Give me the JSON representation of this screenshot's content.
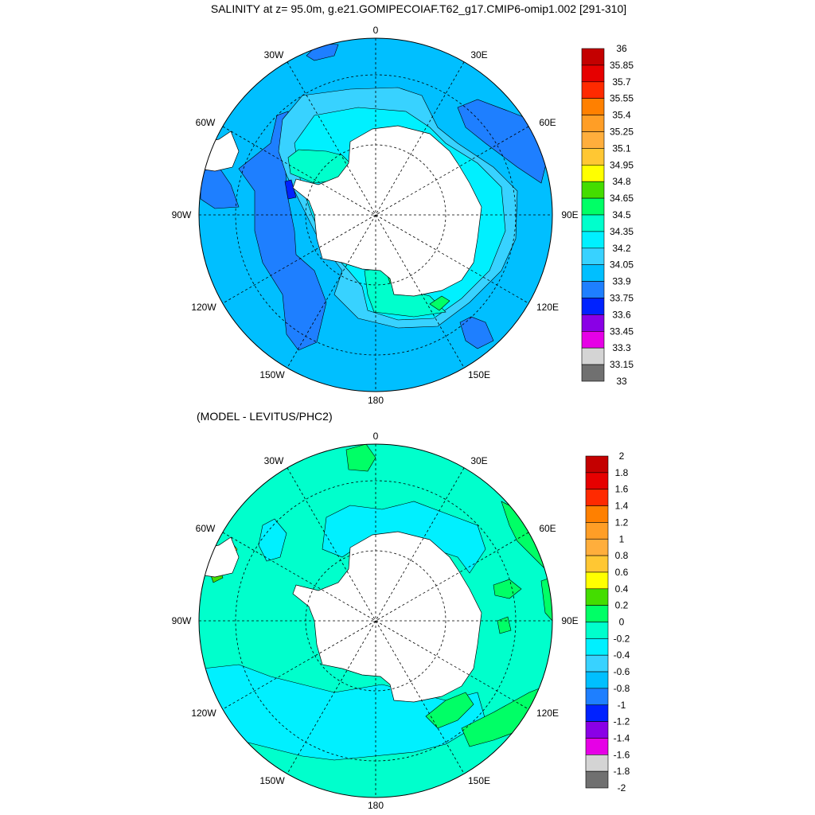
{
  "top_map": {
    "title": "SALINITY at z=  95.0m, g.e21.GOMIPECOIAF.T62_g17.CMIP6-omip1.002 [291-310]",
    "lon_labels": {
      "n": "0",
      "nne": "30E",
      "ene": "60E",
      "e": "90E",
      "ese": "120E",
      "sse": "150E",
      "s": "180",
      "ssw": "150W",
      "wsw": "120W",
      "w": "90W",
      "wnw": "60W",
      "nnw": "30W"
    },
    "colorbar": {
      "labels": [
        "36",
        "35.85",
        "35.7",
        "35.55",
        "35.4",
        "35.25",
        "35.1",
        "34.95",
        "34.8",
        "34.65",
        "34.5",
        "34.35",
        "34.2",
        "34.05",
        "33.9",
        "33.75",
        "33.6",
        "33.45",
        "33.3",
        "33.15",
        "33"
      ],
      "colors": [
        "#c40000",
        "#e60000",
        "#ff2a00",
        "#ff8000",
        "#ff9e26",
        "#ffae3c",
        "#ffc733",
        "#ffff00",
        "#44dd00",
        "#00ff66",
        "#00ffcc",
        "#00f0ff",
        "#38d2ff",
        "#00bfff",
        "#1e7fff",
        "#0022ff",
        "#8a00e6",
        "#e600e6",
        "#d4d4d4",
        "#707070"
      ]
    }
  },
  "bottom_map": {
    "title": "(MODEL - LEVITUS/PHC2)",
    "lon_labels": {
      "n": "0",
      "nne": "30E",
      "ene": "60E",
      "e": "90E",
      "ese": "120E",
      "sse": "150E",
      "s": "180",
      "ssw": "150W",
      "wsw": "120W",
      "w": "90W",
      "wnw": "60W",
      "nnw": "30W"
    },
    "colorbar": {
      "labels": [
        "2",
        "1.8",
        "1.6",
        "1.4",
        "1.2",
        "1",
        "0.8",
        "0.6",
        "0.4",
        "0.2",
        "0",
        "-0.2",
        "-0.4",
        "-0.6",
        "-0.8",
        "-1",
        "-1.2",
        "-1.4",
        "-1.6",
        "-1.8",
        "-2"
      ],
      "colors": [
        "#c40000",
        "#e60000",
        "#ff2a00",
        "#ff8000",
        "#ff9e26",
        "#ffae3c",
        "#ffc733",
        "#ffff00",
        "#44dd00",
        "#00ff66",
        "#00ffcc",
        "#00f0ff",
        "#38d2ff",
        "#00bfff",
        "#1e7fff",
        "#0022ff",
        "#8a00e6",
        "#e600e6",
        "#d4d4d4",
        "#707070"
      ]
    }
  }
}
